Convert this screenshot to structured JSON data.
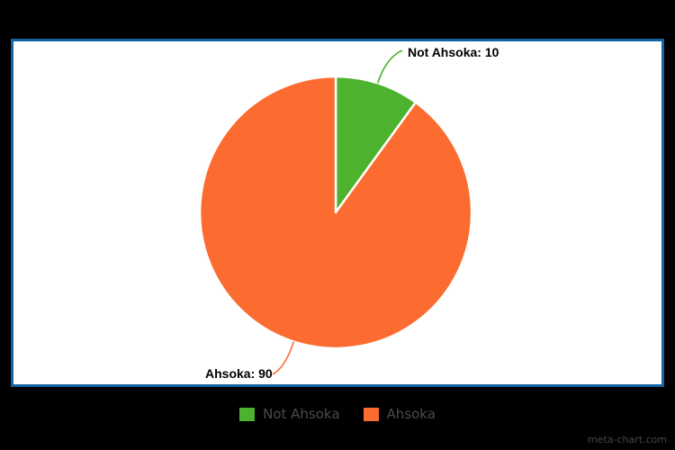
{
  "page": {
    "background_color": "#000000",
    "watermark": "meta-chart.com"
  },
  "panel": {
    "background_color": "#FFFFFF",
    "border_color": "#1563A0"
  },
  "chart_data": {
    "type": "pie",
    "categories": [
      "Not Ahsoka",
      "Ahsoka"
    ],
    "values": [
      10,
      90
    ],
    "colors": [
      "#4DB22E",
      "#FC6B30"
    ],
    "slice_labels": [
      "Not Ahsoka: 10",
      "Ahsoka: 90"
    ],
    "slice_label_color": "#000000",
    "slice_gap_color": "#FFFFFF",
    "start_angle": "top",
    "direction": "clockwise",
    "legend_position": "bottom-outside",
    "legend_text_color": "#4B4B4B"
  }
}
